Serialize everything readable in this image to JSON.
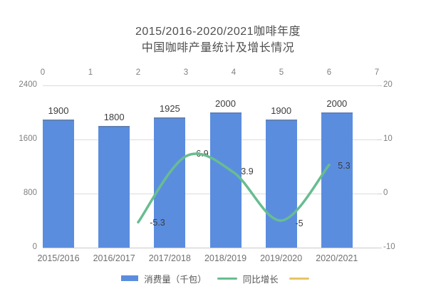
{
  "chart_data": {
    "type": "bar",
    "combo": "bar + line (dual axis)",
    "title": "2015/2016-2020/2021咖啡年度 中国咖啡产量统计及增长情况",
    "title_lines": [
      "2015/2016-2020/2021咖啡年度",
      "中国咖啡产量统计及增长情况"
    ],
    "categories": [
      "2015/2016",
      "2016/2017",
      "2017/2018",
      "2018/2019",
      "2019/2020",
      "2020/2021"
    ],
    "series": [
      {
        "name": "消费量（千包）",
        "type": "bar",
        "axis": "left",
        "color": "#5b8ddf",
        "values": [
          1900,
          1800,
          1925,
          2000,
          1900,
          2000
        ],
        "value_labels": [
          "1900",
          "1800",
          "1925",
          "2000",
          "1900",
          "2000"
        ]
      },
      {
        "name": "同比增长",
        "type": "line",
        "axis": "right",
        "color": "#68bd90",
        "x_top_axis": [
          2,
          3,
          4,
          5,
          6
        ],
        "values": [
          -5.3,
          6.9,
          3.9,
          -5,
          5.3
        ],
        "value_labels": [
          "-5.3",
          "6.9",
          "3.9",
          "-5",
          "5.3"
        ]
      },
      {
        "name": "",
        "type": "line",
        "axis": "right",
        "color": "#e8c466",
        "values": []
      }
    ],
    "left_axis": {
      "ticks": [
        "0",
        "800",
        "1600",
        "2400"
      ],
      "range": [
        0,
        2400
      ]
    },
    "right_axis": {
      "ticks": [
        "-10",
        "0",
        "10",
        "20"
      ],
      "range": [
        -10,
        20
      ]
    },
    "top_axis": {
      "ticks": [
        "0",
        "1",
        "2",
        "3",
        "4",
        "5",
        "6",
        "7"
      ],
      "range": [
        0,
        7
      ]
    },
    "grid": true,
    "legend_position": "bottom",
    "colors": {
      "bar": "#5b8ddf",
      "growth_line": "#68bd90",
      "extra_legend_line": "#e8c466",
      "gridline": "#dcdcdc",
      "text": "#4f4f4f"
    }
  }
}
